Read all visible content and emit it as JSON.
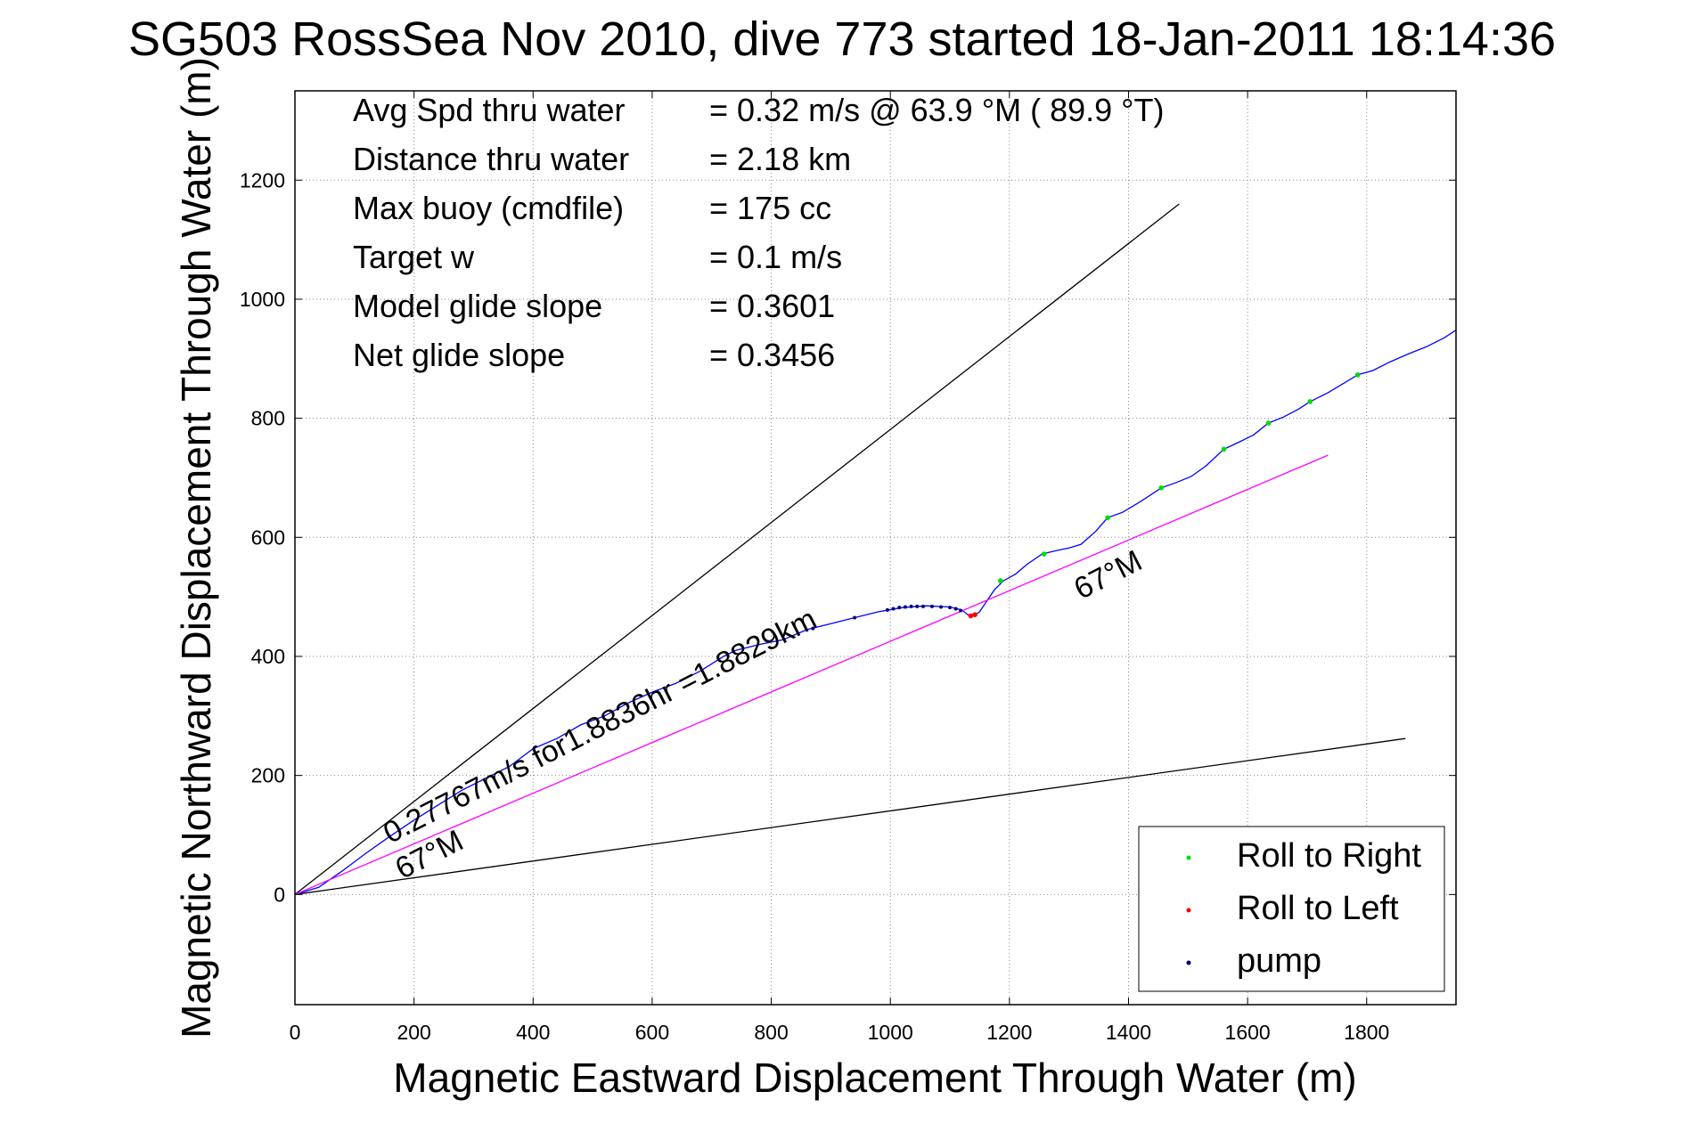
{
  "chart_data": {
    "type": "line",
    "title": "SG503 RossSea Nov 2010, dive 773 started 18-Jan-2011 18:14:36",
    "xlabel": "Magnetic Eastward Displacement Through Water (m)",
    "ylabel": "Magnetic Northward Displacement Through Water (m)",
    "xlim": [
      0,
      1950
    ],
    "ylim": [
      -185,
      1350
    ],
    "xticks": [
      0,
      200,
      400,
      600,
      800,
      1000,
      1200,
      1400,
      1600,
      1800
    ],
    "yticks": [
      0,
      200,
      400,
      600,
      800,
      1000,
      1200
    ],
    "grid": true,
    "legend_position": "bottom-right",
    "stats": [
      {
        "label": "Avg Spd thru water",
        "value": "=  0.32 m/s @  63.9 °M ( 89.9 °T)"
      },
      {
        "label": "Distance thru water",
        "value": "=  2.18 km"
      },
      {
        "label": "Max buoy (cmdfile)",
        "value": "= 175 cc"
      },
      {
        "label": "Target w",
        "value": "= 0.1 m/s"
      },
      {
        "label": "Model glide slope",
        "value": "= 0.3601"
      },
      {
        "label": "Net glide slope",
        "value": "= 0.3456"
      }
    ],
    "annotations": [
      {
        "text": "0.27767m/s for1.8836hr =1.8829km",
        "x": 160,
        "y": 85,
        "angle": 27
      },
      {
        "text": "67°M",
        "x": 180,
        "y": 25,
        "angle": 27
      },
      {
        "text": "67°M",
        "x": 1320,
        "y": 495,
        "angle": 27
      }
    ],
    "legend": [
      {
        "label": "Roll to Right",
        "color": "#00dd00"
      },
      {
        "label": "Roll to Left",
        "color": "#ff0000"
      },
      {
        "label": "pump",
        "color": "#000080"
      }
    ],
    "series": [
      {
        "name": "track",
        "color": "#0000ff",
        "points": [
          [
            0,
            0
          ],
          [
            40,
            12
          ],
          [
            80,
            40
          ],
          [
            120,
            70
          ],
          [
            160,
            98
          ],
          [
            200,
            125
          ],
          [
            240,
            150
          ],
          [
            280,
            175
          ],
          [
            320,
            195
          ],
          [
            360,
            215
          ],
          [
            400,
            245
          ],
          [
            440,
            262
          ],
          [
            480,
            285
          ],
          [
            520,
            300
          ],
          [
            560,
            322
          ],
          [
            600,
            340
          ],
          [
            640,
            355
          ],
          [
            680,
            375
          ],
          [
            720,
            400
          ],
          [
            740,
            410
          ],
          [
            780,
            420
          ],
          [
            820,
            428
          ],
          [
            860,
            445
          ],
          [
            900,
            455
          ],
          [
            940,
            465
          ],
          [
            980,
            475
          ],
          [
            1020,
            482
          ],
          [
            1060,
            485
          ],
          [
            1100,
            483
          ],
          [
            1120,
            478
          ],
          [
            1130,
            470
          ],
          [
            1140,
            468
          ],
          [
            1150,
            475
          ],
          [
            1160,
            490
          ],
          [
            1175,
            512
          ],
          [
            1190,
            527
          ],
          [
            1210,
            538
          ],
          [
            1230,
            555
          ],
          [
            1255,
            572
          ],
          [
            1280,
            578
          ],
          [
            1300,
            582
          ],
          [
            1320,
            588
          ],
          [
            1345,
            610
          ],
          [
            1365,
            633
          ],
          [
            1390,
            642
          ],
          [
            1420,
            660
          ],
          [
            1455,
            683
          ],
          [
            1480,
            692
          ],
          [
            1505,
            702
          ],
          [
            1530,
            720
          ],
          [
            1560,
            748
          ],
          [
            1590,
            762
          ],
          [
            1610,
            772
          ],
          [
            1635,
            792
          ],
          [
            1660,
            802
          ],
          [
            1685,
            815
          ],
          [
            1705,
            828
          ],
          [
            1735,
            843
          ],
          [
            1760,
            858
          ],
          [
            1785,
            873
          ],
          [
            1810,
            880
          ],
          [
            1840,
            895
          ],
          [
            1870,
            908
          ],
          [
            1900,
            920
          ],
          [
            1930,
            935
          ],
          [
            1950,
            948
          ]
        ]
      },
      {
        "name": "bearing line",
        "color": "#ff00ff",
        "points": [
          [
            0,
            0
          ],
          [
            1735,
            738
          ]
        ]
      },
      {
        "name": "bound upper",
        "color": "#000000",
        "points": [
          [
            0,
            0
          ],
          [
            1485,
            1160
          ]
        ]
      },
      {
        "name": "bound lower",
        "color": "#000000",
        "points": [
          [
            0,
            0
          ],
          [
            1865,
            262
          ]
        ]
      }
    ],
    "markers": {
      "roll_right": [
        [
          1185,
          527
        ],
        [
          1258,
          572
        ],
        [
          1365,
          633
        ],
        [
          1455,
          683
        ],
        [
          1560,
          748
        ],
        [
          1635,
          792
        ],
        [
          1705,
          828
        ],
        [
          1785,
          873
        ]
      ],
      "roll_left": [
        [
          1135,
          468
        ],
        [
          1142,
          470
        ]
      ],
      "pump": [
        [
          870,
          447
        ],
        [
          940,
          465
        ],
        [
          995,
          478
        ],
        [
          1005,
          480
        ],
        [
          1015,
          482
        ],
        [
          1025,
          483
        ],
        [
          1035,
          484
        ],
        [
          1045,
          484
        ],
        [
          1055,
          484
        ],
        [
          1070,
          484
        ],
        [
          1085,
          483
        ],
        [
          1100,
          482
        ],
        [
          1110,
          480
        ],
        [
          1118,
          477
        ]
      ]
    }
  }
}
